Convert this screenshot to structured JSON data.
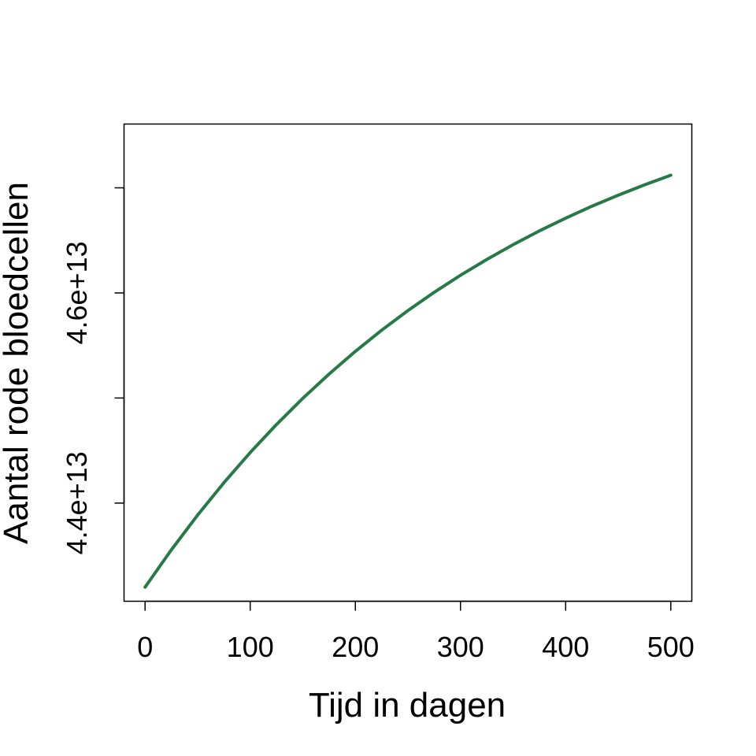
{
  "chart_data": {
    "type": "line",
    "title": "",
    "xlabel": "Tijd in dagen",
    "ylabel": "Aantal rode bloedcellen",
    "xlim": [
      -20,
      520
    ],
    "ylim": [
      43066000000000.0,
      47607000000000.0
    ],
    "x_ticks": [
      0,
      100,
      200,
      300,
      400,
      500
    ],
    "x_tick_labels": [
      "0",
      "100",
      "200",
      "300",
      "400",
      "500"
    ],
    "y_ticks": [
      44000000000000.0,
      45000000000000.0,
      46000000000000.0,
      47000000000000.0
    ],
    "y_tick_labels": [
      "4.4e+13",
      "",
      "4.6e+13",
      ""
    ],
    "grid": false,
    "color": "#267a47",
    "series": [
      {
        "x": [
          0,
          25,
          50,
          75,
          100,
          125,
          150,
          175,
          200,
          225,
          250,
          275,
          300,
          325,
          350,
          375,
          400,
          425,
          450,
          475,
          500
        ],
        "y": [
          43200000000000.0,
          43555000000000.0,
          43886000000000.0,
          44194000000000.0,
          44481000000000.0,
          44748000000000.0,
          44997000000000.0,
          45228000000000.0,
          45444000000000.0,
          45645000000000.0,
          45832000000000.0,
          46006000000000.0,
          46168000000000.0,
          46318000000000.0,
          46459000000000.0,
          46590000000000.0,
          46711000000000.0,
          46825000000000.0,
          46930000000000.0,
          47028000000000.0,
          47120000000000.0
        ]
      }
    ]
  }
}
